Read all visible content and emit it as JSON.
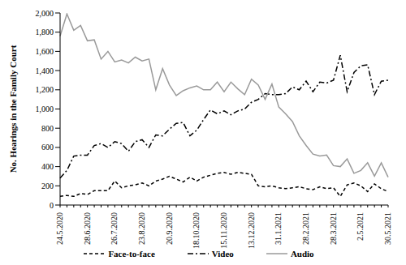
{
  "chart_data": {
    "type": "line",
    "y_label": "No. Hearings in the Family Court",
    "categories": [
      "24.5.2020",
      null,
      null,
      null,
      "28.6.2020",
      null,
      null,
      null,
      "26.7.2020",
      null,
      null,
      null,
      "23.8.2020",
      null,
      null,
      null,
      "20.9.2020",
      null,
      null,
      null,
      "18.10.2020",
      null,
      null,
      null,
      "15.11.2020",
      null,
      null,
      null,
      "13.12.2020",
      null,
      null,
      null,
      "31.1.2021",
      null,
      null,
      null,
      "28.2.2021",
      null,
      null,
      null,
      "28.3.2021",
      null,
      null,
      null,
      "2.5.2021",
      null,
      null,
      null,
      "30.5.2021"
    ],
    "ylim": [
      0,
      2000
    ],
    "yticks": [
      0,
      200,
      400,
      600,
      800,
      {
        "value": 1000,
        "label": "1,000"
      },
      {
        "value": 1200,
        "label": "1,200"
      },
      {
        "value": 1400,
        "label": "1,400"
      },
      {
        "value": 1600,
        "label": "1,600"
      },
      {
        "value": 1800,
        "label": "1,800"
      },
      {
        "value": 2000,
        "label": "2,000"
      }
    ],
    "grid": false,
    "legend": "bottom",
    "series": [
      {
        "name": "Face-to-face",
        "color": "#000000",
        "line_style": "dashed",
        "values": [
          90,
          100,
          90,
          120,
          110,
          150,
          150,
          150,
          250,
          180,
          200,
          210,
          230,
          200,
          250,
          270,
          300,
          270,
          240,
          290,
          250,
          290,
          310,
          330,
          340,
          320,
          340,
          330,
          320,
          200,
          190,
          200,
          180,
          170,
          180,
          190,
          170,
          160,
          190,
          170,
          180,
          90,
          210,
          230,
          200,
          140,
          220,
          170,
          140
        ]
      },
      {
        "name": "Video",
        "color": "#000000",
        "line_style": "dashdot",
        "values": [
          280,
          360,
          510,
          520,
          520,
          620,
          640,
          600,
          660,
          640,
          560,
          660,
          680,
          600,
          730,
          720,
          790,
          850,
          860,
          720,
          780,
          890,
          990,
          950,
          980,
          940,
          980,
          1000,
          1070,
          1100,
          1160,
          1150,
          1150,
          1160,
          1230,
          1200,
          1290,
          1180,
          1280,
          1270,
          1300,
          1560,
          1180,
          1380,
          1450,
          1460,
          1150,
          1290,
          1300
        ]
      },
      {
        "name": "Audio",
        "color": "#9a9a9a",
        "line_style": "solid",
        "values": [
          1760,
          1990,
          1820,
          1870,
          1710,
          1720,
          1520,
          1600,
          1490,
          1510,
          1480,
          1540,
          1500,
          1520,
          1200,
          1420,
          1250,
          1140,
          1190,
          1220,
          1240,
          1200,
          1200,
          1280,
          1180,
          1280,
          1210,
          1150,
          1310,
          1250,
          1100,
          1260,
          1020,
          950,
          870,
          720,
          620,
          530,
          510,
          520,
          410,
          400,
          480,
          330,
          360,
          440,
          300,
          440,
          290
        ]
      }
    ]
  }
}
